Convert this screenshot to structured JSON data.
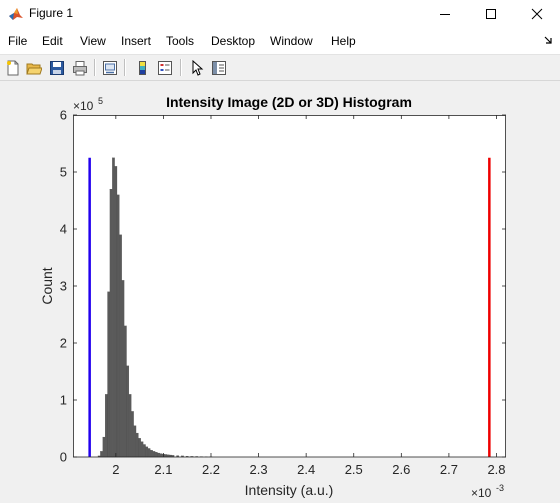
{
  "window": {
    "title": "Figure 1",
    "controls": {
      "minimize": "minimize-icon",
      "maximize": "maximize-icon",
      "close": "close-icon"
    }
  },
  "menu": {
    "items": [
      "File",
      "Edit",
      "View",
      "Insert",
      "Tools",
      "Desktop",
      "Window",
      "Help"
    ]
  },
  "toolbar": {
    "buttons": [
      "new-figure-icon",
      "open-file-icon",
      "save-icon",
      "print-icon",
      "link-plot-icon",
      "insert-colorbar-icon",
      "insert-legend-icon",
      "pointer-icon",
      "property-inspector-icon"
    ]
  },
  "colors": {
    "bars": "#5a5a5a",
    "lower_limit_line": "#2200ee",
    "upper_limit_line": "#ee0000",
    "axes_background": "#ffffff",
    "figure_background": "#f0f0f0"
  },
  "chart_data": {
    "type": "bar",
    "title": "Intensity Image (2D or 3D) Histogram",
    "xlabel": "Intensity (a.u.)",
    "ylabel": "Count",
    "x_exponent_label": "×10",
    "x_exponent": "-3",
    "y_exponent_label": "×10",
    "y_exponent": "5",
    "xlim": [
      1.91,
      2.82
    ],
    "ylim": [
      0,
      6
    ],
    "xticks": [
      2.0,
      2.1,
      2.2,
      2.3,
      2.4,
      2.5,
      2.6,
      2.7,
      2.8
    ],
    "xtick_labels": [
      "2",
      "2.1",
      "2.2",
      "2.3",
      "2.4",
      "2.5",
      "2.6",
      "2.7",
      "2.8"
    ],
    "yticks": [
      0,
      1,
      2,
      3,
      4,
      5,
      6
    ],
    "ytick_labels": [
      "0",
      "1",
      "2",
      "3",
      "4",
      "5",
      "6"
    ],
    "grid": false,
    "bin_width": 0.005,
    "bins": [
      {
        "x": 1.965,
        "y": 0.02
      },
      {
        "x": 1.97,
        "y": 0.1
      },
      {
        "x": 1.975,
        "y": 0.35
      },
      {
        "x": 1.98,
        "y": 1.1
      },
      {
        "x": 1.985,
        "y": 2.9
      },
      {
        "x": 1.99,
        "y": 4.7
      },
      {
        "x": 1.995,
        "y": 5.25
      },
      {
        "x": 2.0,
        "y": 5.1
      },
      {
        "x": 2.005,
        "y": 4.6
      },
      {
        "x": 2.01,
        "y": 3.9
      },
      {
        "x": 2.015,
        "y": 3.1
      },
      {
        "x": 2.02,
        "y": 2.3
      },
      {
        "x": 2.025,
        "y": 1.6
      },
      {
        "x": 2.03,
        "y": 1.1
      },
      {
        "x": 2.035,
        "y": 0.8
      },
      {
        "x": 2.04,
        "y": 0.55
      },
      {
        "x": 2.045,
        "y": 0.42
      },
      {
        "x": 2.05,
        "y": 0.33
      },
      {
        "x": 2.055,
        "y": 0.27
      },
      {
        "x": 2.06,
        "y": 0.22
      },
      {
        "x": 2.065,
        "y": 0.18
      },
      {
        "x": 2.07,
        "y": 0.15
      },
      {
        "x": 2.075,
        "y": 0.12
      },
      {
        "x": 2.08,
        "y": 0.1
      },
      {
        "x": 2.085,
        "y": 0.085
      },
      {
        "x": 2.09,
        "y": 0.07
      },
      {
        "x": 2.095,
        "y": 0.06
      },
      {
        "x": 2.1,
        "y": 0.05
      },
      {
        "x": 2.105,
        "y": 0.045
      },
      {
        "x": 2.11,
        "y": 0.04
      },
      {
        "x": 2.115,
        "y": 0.035
      },
      {
        "x": 2.12,
        "y": 0.03
      },
      {
        "x": 2.13,
        "y": 0.025
      },
      {
        "x": 2.14,
        "y": 0.02
      },
      {
        "x": 2.15,
        "y": 0.015
      },
      {
        "x": 2.16,
        "y": 0.012
      },
      {
        "x": 2.17,
        "y": 0.01
      },
      {
        "x": 2.18,
        "y": 0.008
      },
      {
        "x": 2.19,
        "y": 0.006
      },
      {
        "x": 2.2,
        "y": 0.005
      }
    ],
    "vertical_lines": [
      {
        "x": 1.945,
        "y_top": 5.25,
        "color": "#2200ee"
      },
      {
        "x": 2.785,
        "y_top": 5.25,
        "color": "#ee0000"
      }
    ]
  }
}
